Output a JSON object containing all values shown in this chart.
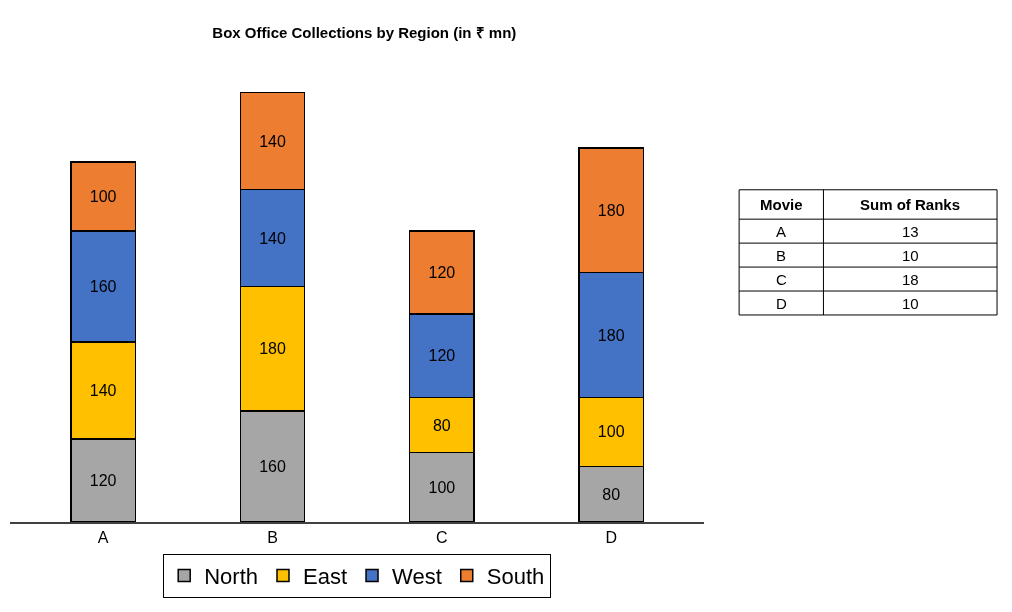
{
  "chart_data": [
    {
      "type": "bar",
      "title": "Box Office Collections by Region (in ₹ mn)",
      "categories": [
        "A",
        "B",
        "C",
        "D"
      ],
      "stacked": true,
      "data_labels": true,
      "legend": "bottom",
      "series": [
        {
          "name": "North",
          "color": "#a6a6a6",
          "values": [
            120,
            160,
            100,
            80
          ]
        },
        {
          "name": "East",
          "color": "#ffc000",
          "values": [
            140,
            180,
            80,
            100
          ]
        },
        {
          "name": "West",
          "color": "#4472c4",
          "values": [
            160,
            140,
            120,
            180
          ]
        },
        {
          "name": "South",
          "color": "#ed7d31",
          "values": [
            100,
            140,
            120,
            180
          ]
        }
      ]
    },
    {
      "type": "other",
      "annotations": [
        "Movie",
        "Sum of Ranks"
      ],
      "categories": [
        "A",
        "B",
        "C",
        "D"
      ],
      "values": [
        13,
        10,
        18,
        10
      ],
      "data_labels": true
    }
  ]
}
